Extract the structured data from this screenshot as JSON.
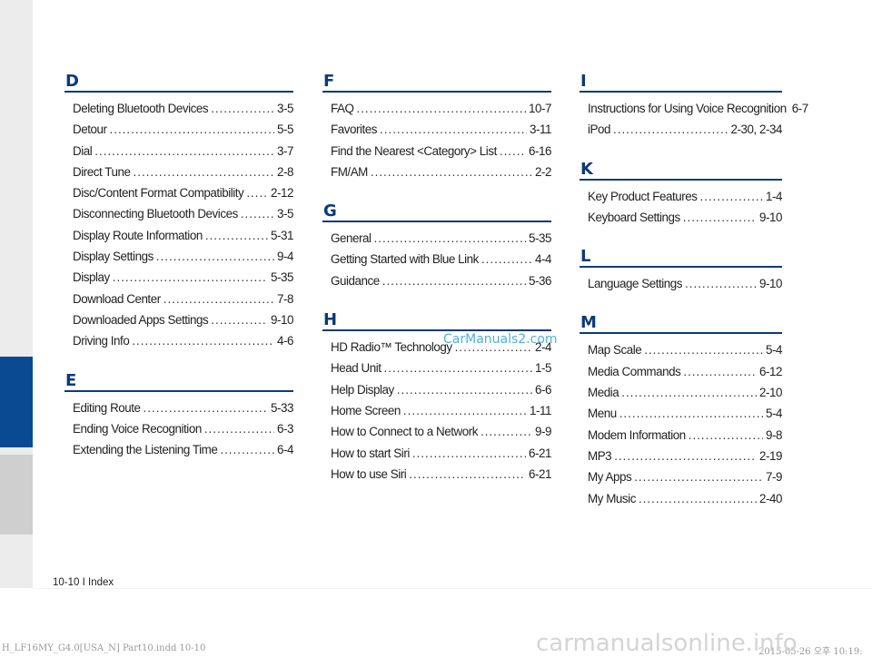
{
  "colors": {
    "accent": "#0a3a78",
    "tab_active": "#0a4a92",
    "tab_inactive": "#cfcfcf",
    "sidebar": "#ececec"
  },
  "columns": [
    [
      {
        "letter": "D",
        "entries": [
          {
            "term": "Deleting Bluetooth Devices",
            "page": "3-5"
          },
          {
            "term": "Detour",
            "page": "5-5"
          },
          {
            "term": "Dial",
            "page": "3-7"
          },
          {
            "term": "Direct Tune",
            "page": "2-8"
          },
          {
            "term": "Disc/Content Format Compatibility",
            "page": "2-12"
          },
          {
            "term": "Disconnecting Bluetooth Devices",
            "page": "3-5"
          },
          {
            "term": "Display Route Information",
            "page": "5-31"
          },
          {
            "term": "Display Settings",
            "page": "9-4"
          },
          {
            "term": "Display",
            "page": "5-35"
          },
          {
            "term": "Download Center",
            "page": "7-8"
          },
          {
            "term": "Downloaded Apps Settings",
            "page": "9-10"
          },
          {
            "term": "Driving Info",
            "page": "4-6"
          }
        ]
      },
      {
        "letter": "E",
        "entries": [
          {
            "term": "Editing Route",
            "page": "5-33"
          },
          {
            "term": "Ending Voice Recognition",
            "page": "6-3"
          },
          {
            "term": "Extending the Listening Time",
            "page": "6-4"
          }
        ]
      }
    ],
    [
      {
        "letter": "F",
        "entries": [
          {
            "term": "FAQ",
            "page": "10-7"
          },
          {
            "term": "Favorites",
            "page": "3-11"
          },
          {
            "term": "Find the Nearest <Category> List",
            "page": "6-16"
          },
          {
            "term": "FM/AM",
            "page": "2-2"
          }
        ]
      },
      {
        "letter": "G",
        "entries": [
          {
            "term": "General",
            "page": "5-35"
          },
          {
            "term": "Getting Started with Blue Link",
            "page": "4-4"
          },
          {
            "term": "Guidance",
            "page": "5-36"
          }
        ]
      },
      {
        "letter": "H",
        "entries": [
          {
            "term": "HD Radio™ Technology",
            "page": "2-4"
          },
          {
            "term": "Head Unit",
            "page": "1-5"
          },
          {
            "term": "Help Display",
            "page": "6-6"
          },
          {
            "term": "Home Screen",
            "page": "1-11"
          },
          {
            "term": "How to Connect to a Network",
            "page": "9-9"
          },
          {
            "term": "How to start Siri",
            "page": "6-21"
          },
          {
            "term": "How to use Siri",
            "page": "6-21"
          }
        ]
      }
    ],
    [
      {
        "letter": "I",
        "entries": [
          {
            "term": "Instructions for Using Voice Recognition",
            "page": "6-7"
          },
          {
            "term": "iPod",
            "page": "2-30, 2-34"
          }
        ]
      },
      {
        "letter": "K",
        "entries": [
          {
            "term": "Key Product Features",
            "page": "1-4"
          },
          {
            "term": "Keyboard Settings",
            "page": "9-10"
          }
        ]
      },
      {
        "letter": "L",
        "entries": [
          {
            "term": "Language Settings",
            "page": "9-10"
          }
        ]
      },
      {
        "letter": "M",
        "entries": [
          {
            "term": "Map Scale",
            "page": "5-4"
          },
          {
            "term": "Media Commands",
            "page": "6-12"
          },
          {
            "term": "Media",
            "page": "2-10"
          },
          {
            "term": "Menu",
            "page": "5-4"
          },
          {
            "term": "Modem Information",
            "page": "9-8"
          },
          {
            "term": "MP3",
            "page": "2-19"
          },
          {
            "term": "My Apps",
            "page": "7-9"
          },
          {
            "term": "My Music",
            "page": "2-40"
          }
        ]
      }
    ]
  ],
  "footer": {
    "page_label": "10-10 I Index"
  },
  "file_info": {
    "filename": "H_LF16MY_G4.0[USA_N] Part10.indd   10-10",
    "date": "2015-05-26   오후 10:19:"
  },
  "watermarks": {
    "site1": "CarManuals2.com",
    "site2": "carmanualsonline.info"
  }
}
